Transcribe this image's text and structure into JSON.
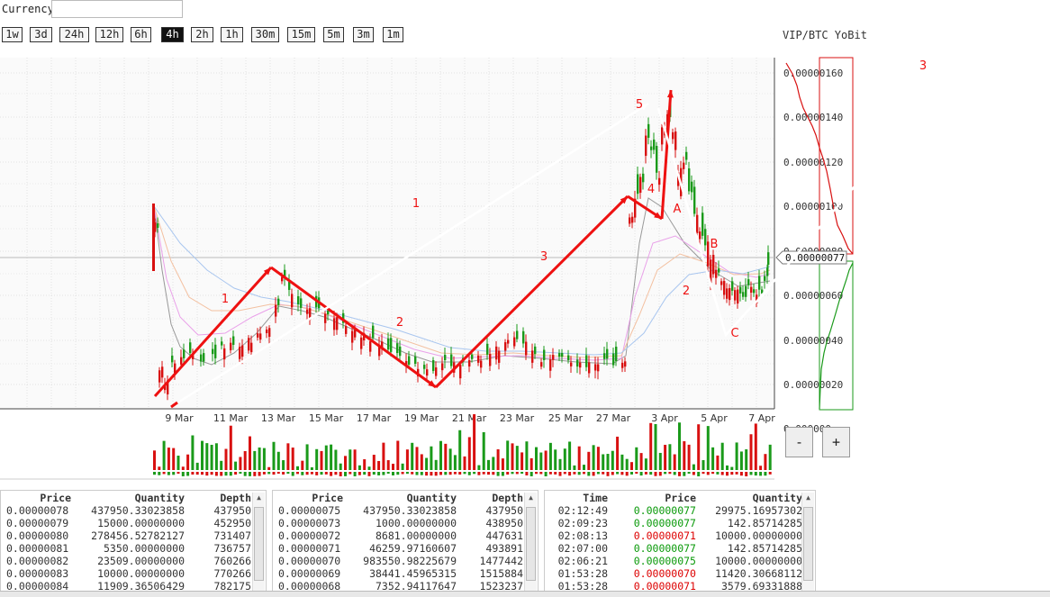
{
  "currency": {
    "label": "Currency",
    "value": ""
  },
  "timeframes": [
    "1w",
    "3d",
    "24h",
    "12h",
    "6h",
    "4h",
    "2h",
    "1h",
    "30m",
    "15m",
    "5m",
    "3m",
    "1m"
  ],
  "active_timeframe": "4h",
  "pair_title": "VIP/BTC YoBit",
  "colors": {
    "up": "#1a9a1a",
    "down": "#d81010",
    "annotation": "#ee1111",
    "arrow_white": "#ffffff"
  },
  "chart_data": {
    "type": "candlestick",
    "x_ticks": [
      "9 Mar",
      "11 Mar",
      "13 Mar",
      "15 Mar",
      "17 Mar",
      "19 Mar",
      "21 Mar",
      "23 Mar",
      "25 Mar",
      "27 Mar",
      "3 Apr",
      "5 Apr",
      "7 Apr"
    ],
    "y_ticks": [
      "0.00000160",
      "0.00000140",
      "0.00000120",
      "0.00000100",
      "0.00000080",
      "0.00000060",
      "0.00000040",
      "0.00000020"
    ],
    "ylim": [
      1e-07,
      1.66e-06
    ],
    "current_price": "0.00000077",
    "wave_labels": [
      "1",
      "2",
      "3",
      "4",
      "5",
      "A",
      "B",
      "C"
    ],
    "big_wave_labels": [
      "1",
      "2",
      "3"
    ],
    "bottom_tick_fragment": "0.000000"
  },
  "zoom": {
    "minus": "-",
    "plus": "+"
  },
  "sell_orders": {
    "headers": [
      "Price",
      "Quantity",
      "Depth"
    ],
    "rows": [
      [
        "0.00000078",
        "437950.33023858",
        "437950"
      ],
      [
        "0.00000079",
        "15000.00000000",
        "452950"
      ],
      [
        "0.00000080",
        "278456.52782127",
        "731407"
      ],
      [
        "0.00000081",
        "5350.00000000",
        "736757"
      ],
      [
        "0.00000082",
        "23509.00000000",
        "760266"
      ],
      [
        "0.00000083",
        "10000.00000000",
        "770266"
      ],
      [
        "0.00000084",
        "11909.36506429",
        "782175"
      ]
    ]
  },
  "buy_orders": {
    "headers": [
      "Price",
      "Quantity",
      "Depth"
    ],
    "rows": [
      [
        "0.00000075",
        "437950.33023858",
        "437950"
      ],
      [
        "0.00000073",
        "1000.00000000",
        "438950"
      ],
      [
        "0.00000072",
        "8681.00000000",
        "447631"
      ],
      [
        "0.00000071",
        "46259.97160607",
        "493891"
      ],
      [
        "0.00000070",
        "983550.98225679",
        "1477442"
      ],
      [
        "0.00000069",
        "38441.45965315",
        "1515884"
      ],
      [
        "0.00000068",
        "7352.94117647",
        "1523237"
      ]
    ]
  },
  "trades": {
    "headers": [
      "Time",
      "Price",
      "Quantity"
    ],
    "rows": [
      {
        "time": "02:12:49",
        "price": "0.00000077",
        "qty": "29975.16957302",
        "side": "buy"
      },
      {
        "time": "02:09:23",
        "price": "0.00000077",
        "qty": "142.85714285",
        "side": "buy"
      },
      {
        "time": "02:08:13",
        "price": "0.00000071",
        "qty": "10000.00000000",
        "side": "sell"
      },
      {
        "time": "02:07:00",
        "price": "0.00000077",
        "qty": "142.85714285",
        "side": "buy"
      },
      {
        "time": "02:06:21",
        "price": "0.00000075",
        "qty": "10000.00000000",
        "side": "buy"
      },
      {
        "time": "01:53:28",
        "price": "0.00000070",
        "qty": "11420.30668112",
        "side": "sell"
      },
      {
        "time": "01:53:28",
        "price": "0.00000071",
        "qty": "3579.69331888",
        "side": "sell"
      }
    ]
  }
}
